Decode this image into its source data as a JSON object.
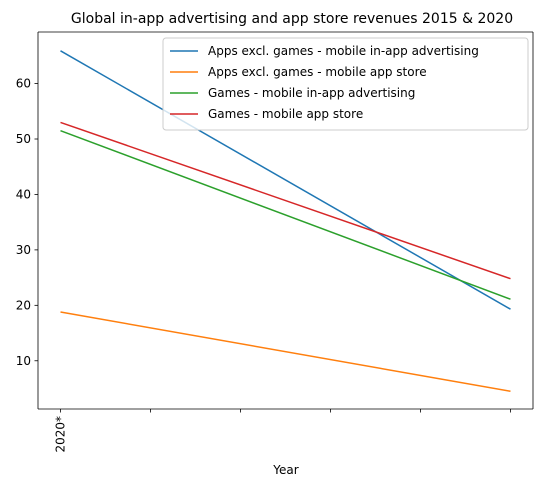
{
  "chart_data": {
    "type": "line",
    "title": "Global in-app advertising and app store revenues 2015 & 2020",
    "xlabel": "Year",
    "ylabel": "",
    "x_tick_labels": [
      "2020*"
    ],
    "x_tick_count": 6,
    "y_ticks": [
      10,
      20,
      30,
      40,
      50,
      60
    ],
    "ylim": [
      1.3,
      69.3
    ],
    "xlim": [
      -0.25,
      5.25
    ],
    "grid": false,
    "legend_position": "top-right",
    "series": [
      {
        "name": "Apps excl. games - mobile in-app advertising",
        "color": "#1f77b4",
        "x": [
          0,
          5
        ],
        "values": [
          65.9,
          19.3
        ]
      },
      {
        "name": "Apps excl. games - mobile app store",
        "color": "#ff7f0e",
        "x": [
          0,
          5
        ],
        "values": [
          18.8,
          4.5
        ]
      },
      {
        "name": "Games - mobile in-app advertising",
        "color": "#2ca02c",
        "x": [
          0,
          5
        ],
        "values": [
          51.5,
          21.1
        ]
      },
      {
        "name": "Games - mobile app store",
        "color": "#d62728",
        "x": [
          0,
          5
        ],
        "values": [
          53.0,
          24.8
        ]
      }
    ]
  }
}
